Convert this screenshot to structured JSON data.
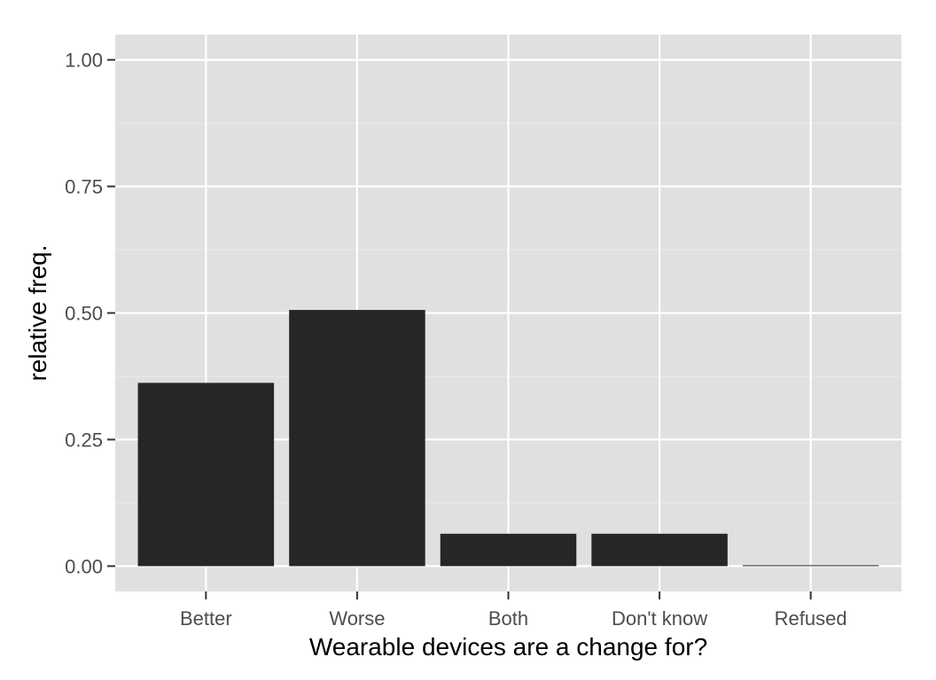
{
  "chart_data": {
    "type": "bar",
    "categories": [
      "Better",
      "Worse",
      "Both",
      "Don't know",
      "Refused"
    ],
    "values": [
      0.362,
      0.506,
      0.064,
      0.064,
      0.001
    ],
    "xlabel": "Wearable devices are a change for?",
    "ylabel": "relative freq.",
    "ylim": [
      -0.05,
      1.05
    ],
    "yticks": [
      0.0,
      0.25,
      0.5,
      0.75,
      1.0
    ],
    "ytick_labels": [
      "0.00",
      "0.25",
      "0.50",
      "0.75",
      "1.00"
    ],
    "grid": true,
    "colors": {
      "panel_background": "#e0e0e0",
      "grid_major": "#ffffff",
      "grid_minor": "#ebebeb",
      "bar_fill": "#262626",
      "tick_label": "#4d4d4d",
      "axis_title": "#000000"
    }
  }
}
